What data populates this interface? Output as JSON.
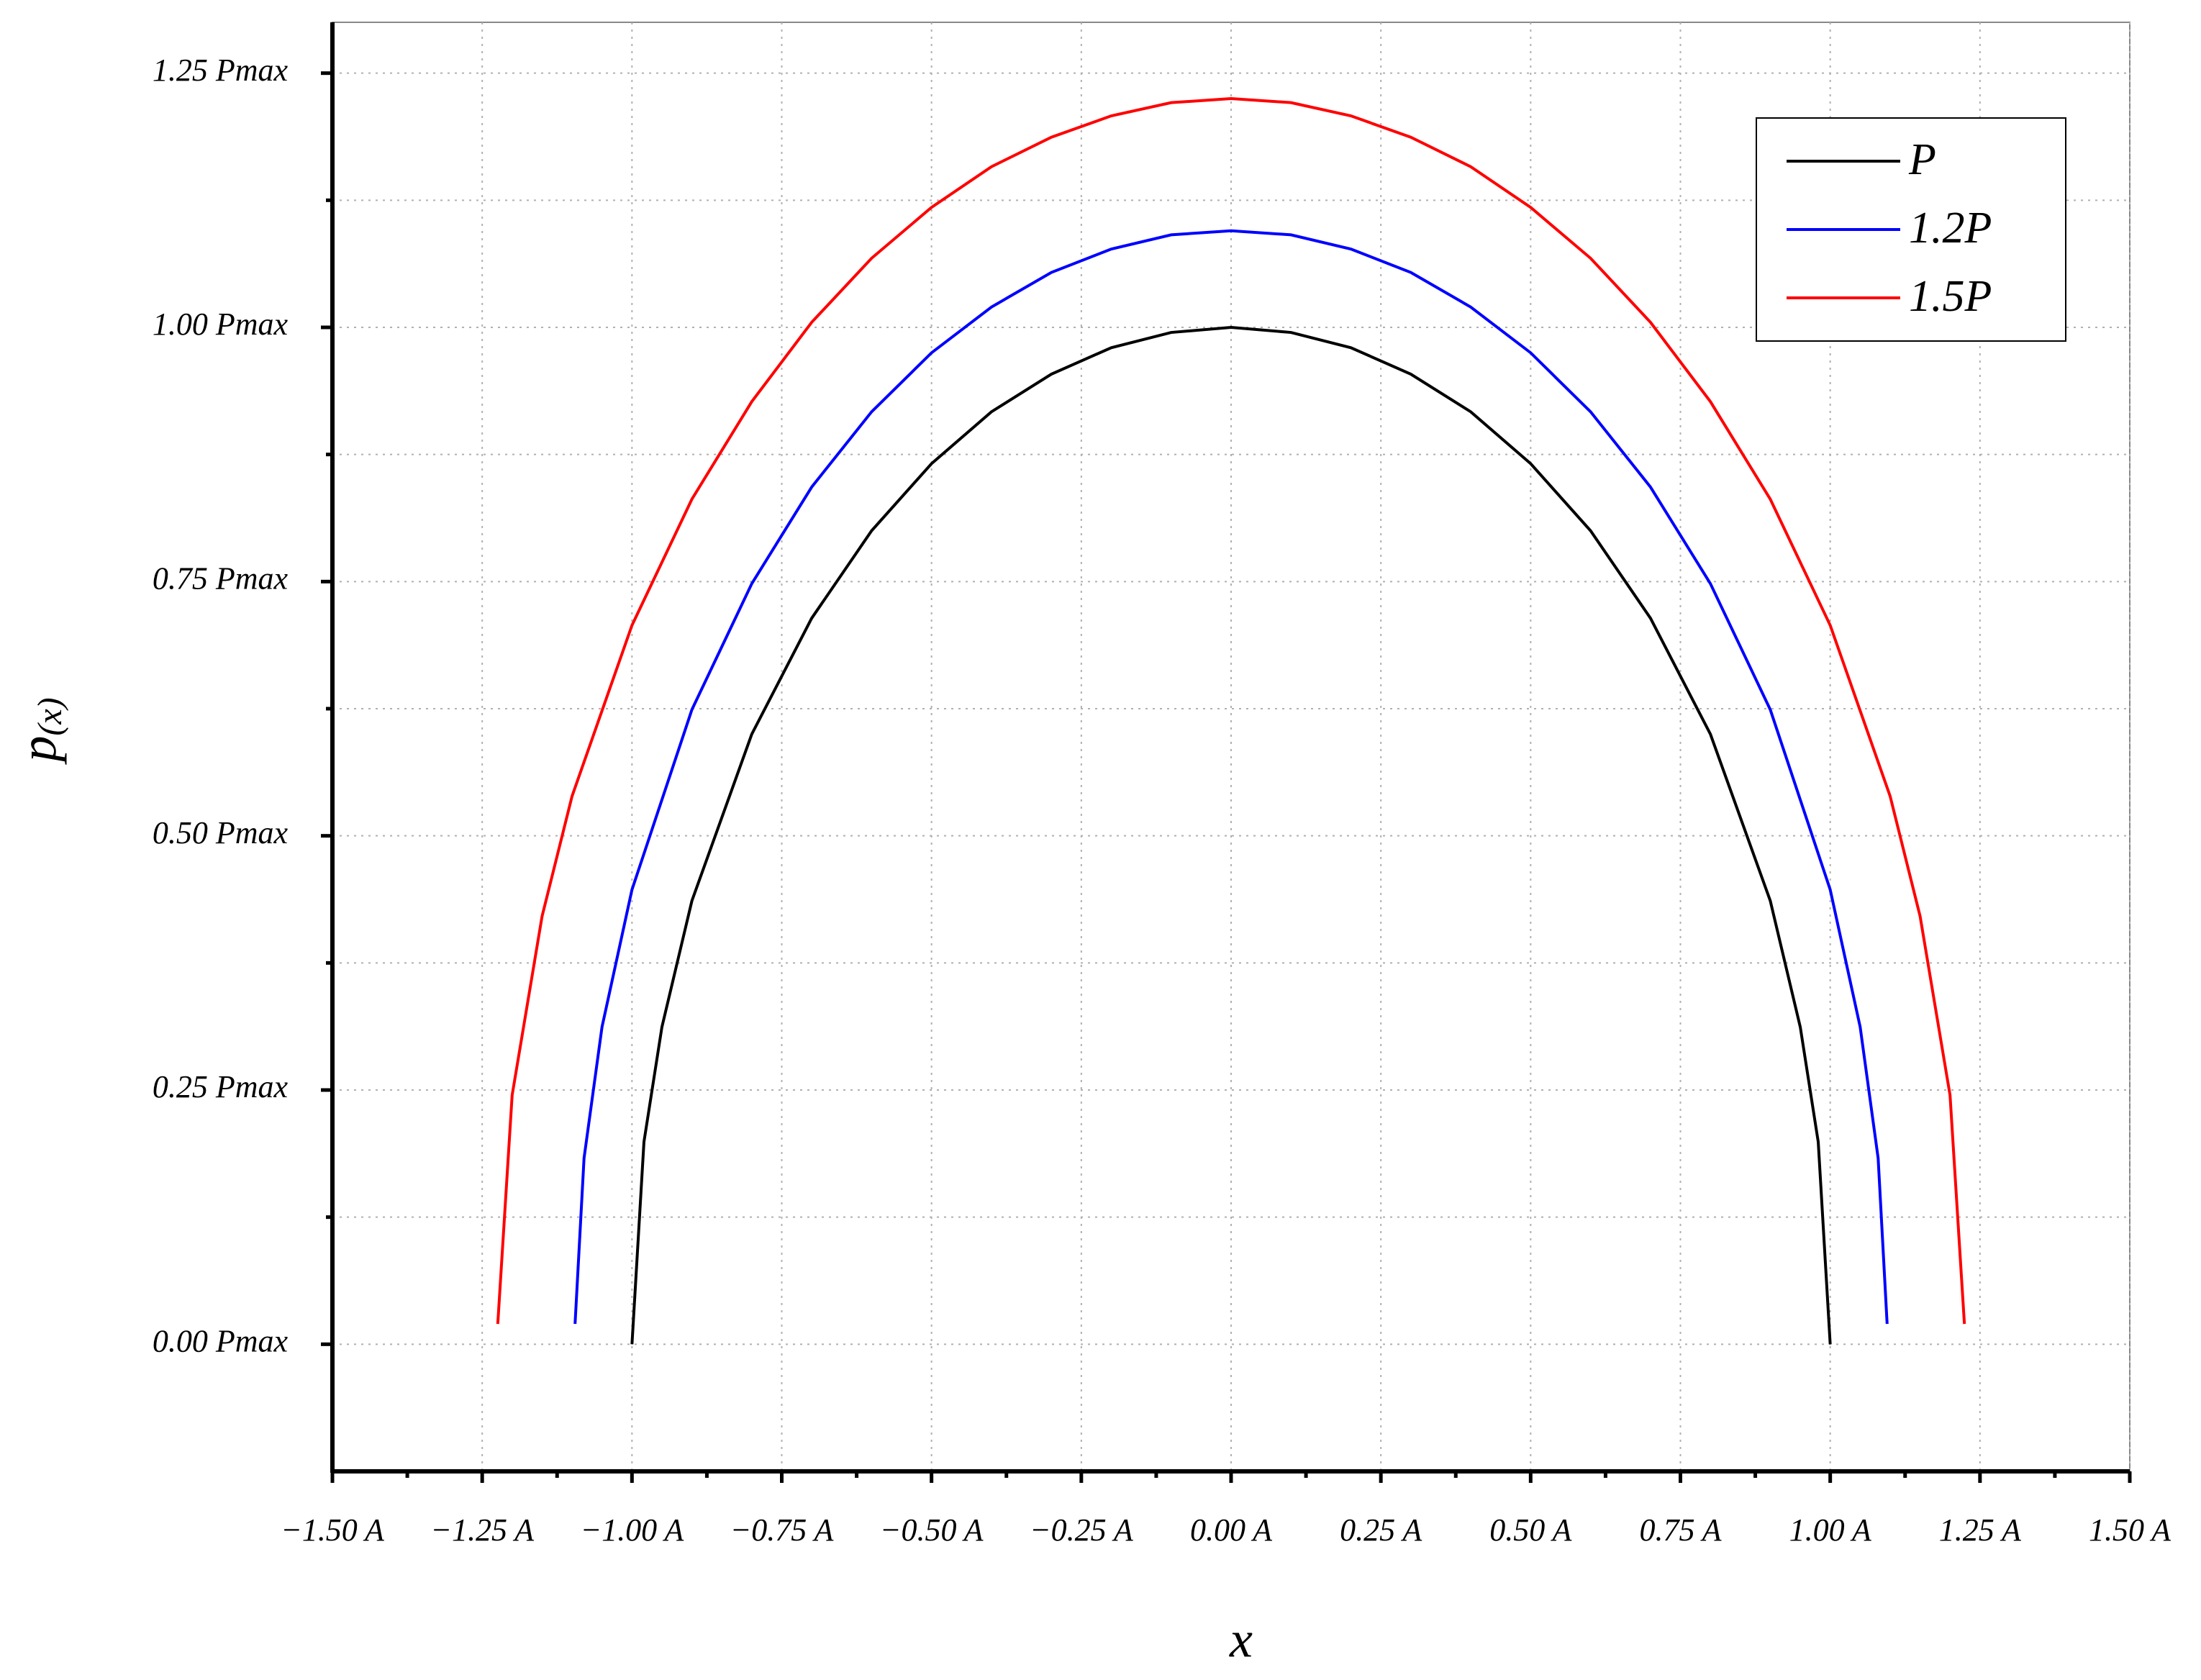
{
  "chart_data": {
    "type": "line",
    "x_label": "x",
    "y_label": "p(x)",
    "xlim": [
      -1.5,
      1.5
    ],
    "ylim": [
      -0.125,
      1.3
    ],
    "xticks": [
      {
        "value": -1.5,
        "label": "−1.50 A"
      },
      {
        "value": -1.25,
        "label": "−1.25 A"
      },
      {
        "value": -1.0,
        "label": "−1.00 A"
      },
      {
        "value": -0.75,
        "label": "−0.75 A"
      },
      {
        "value": -0.5,
        "label": "−0.50 A"
      },
      {
        "value": -0.25,
        "label": "−0.25 A"
      },
      {
        "value": 0,
        "label": "0.00 A"
      },
      {
        "value": 0.25,
        "label": "0.25 A"
      },
      {
        "value": 0.5,
        "label": "0.50 A"
      },
      {
        "value": 0.75,
        "label": "0.75 A"
      },
      {
        "value": 1.0,
        "label": "1.00 A"
      },
      {
        "value": 1.25,
        "label": "1.25 A"
      },
      {
        "value": 1.5,
        "label": "1.50 A"
      }
    ],
    "yticks": [
      {
        "value": 0,
        "label": "0.00 Pmax"
      },
      {
        "value": 0.25,
        "label": "0.25 Pmax"
      },
      {
        "value": 0.5,
        "label": "0.50 Pmax"
      },
      {
        "value": 0.75,
        "label": "0.75 Pmax"
      },
      {
        "value": 1.0,
        "label": "1.00 Pmax"
      },
      {
        "value": 1.25,
        "label": "1.25 Pmax"
      }
    ],
    "grid": true,
    "legend": "upper right",
    "series": [
      {
        "name": "P",
        "color": "#000000",
        "label_color": "#000000",
        "x": [
          -1,
          -0.98,
          -0.95,
          -0.9,
          -0.8,
          -0.7,
          -0.6,
          -0.5,
          -0.4,
          -0.3,
          -0.2,
          -0.1,
          0,
          0.1,
          0.2,
          0.3,
          0.4,
          0.5,
          0.6,
          0.7,
          0.8,
          0.9,
          0.95,
          0.98,
          1
        ],
        "values": [
          0,
          0.199,
          0.312,
          0.436,
          0.6,
          0.714,
          0.8,
          0.866,
          0.917,
          0.954,
          0.98,
          0.995,
          1,
          0.995,
          0.98,
          0.954,
          0.917,
          0.866,
          0.8,
          0.714,
          0.6,
          0.436,
          0.312,
          0.199,
          0
        ]
      },
      {
        "name": "1.2P",
        "color": "#0000ff",
        "label_color": "#000000",
        "x": [
          -1.095,
          -1.08,
          -1.05,
          -1.0,
          -0.9,
          -0.8,
          -0.7,
          -0.6,
          -0.5,
          -0.4,
          -0.3,
          -0.2,
          -0.1,
          0,
          0.1,
          0.2,
          0.3,
          0.4,
          0.5,
          0.6,
          0.7,
          0.8,
          0.9,
          1.0,
          1.05,
          1.08,
          1.095
        ],
        "values": [
          0.02,
          0.183,
          0.312,
          0.447,
          0.624,
          0.748,
          0.843,
          0.917,
          0.975,
          1.02,
          1.054,
          1.077,
          1.091,
          1.095,
          1.091,
          1.077,
          1.054,
          1.02,
          0.975,
          0.917,
          0.843,
          0.748,
          0.624,
          0.447,
          0.312,
          0.183,
          0.02
        ]
      },
      {
        "name": "1.5P",
        "color": "#ff0000",
        "label_color": "#ff0000",
        "x": [
          -1.224,
          -1.2,
          -1.15,
          -1.1,
          -1.0,
          -0.9,
          -0.8,
          -0.7,
          -0.6,
          -0.5,
          -0.4,
          -0.3,
          -0.2,
          -0.1,
          0,
          0.1,
          0.2,
          0.3,
          0.4,
          0.5,
          0.6,
          0.7,
          0.8,
          0.9,
          1.0,
          1.1,
          1.15,
          1.2,
          1.224
        ],
        "values": [
          0.02,
          0.245,
          0.421,
          0.539,
          0.707,
          0.831,
          0.927,
          1.005,
          1.068,
          1.118,
          1.158,
          1.187,
          1.208,
          1.221,
          1.225,
          1.221,
          1.208,
          1.187,
          1.158,
          1.118,
          1.068,
          1.005,
          0.927,
          0.831,
          0.707,
          0.539,
          0.421,
          0.245,
          0.02
        ]
      }
    ]
  }
}
